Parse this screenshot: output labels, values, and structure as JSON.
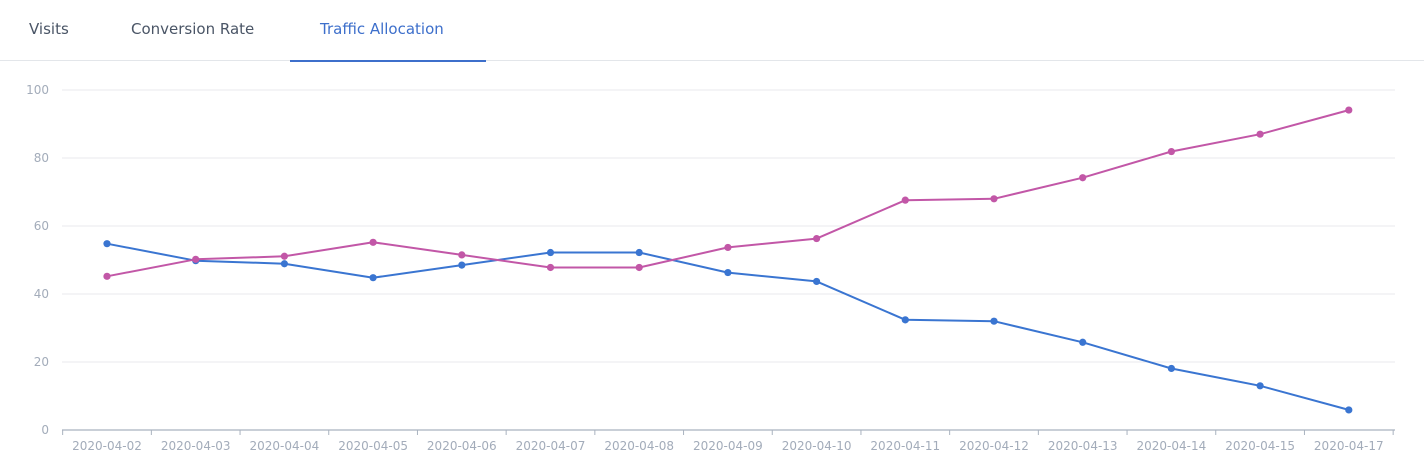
{
  "tabs": [
    {
      "label": "Visits",
      "active": false
    },
    {
      "label": "Conversion Rate",
      "active": false
    },
    {
      "label": "Traffic Allocation",
      "active": true
    }
  ],
  "colors": {
    "accent": "#3d6fcb",
    "series_blue": "#3a75d1",
    "series_magenta": "#c257a7",
    "grid": "#e8eaee",
    "axis": "#a9b2bf",
    "tick_text": "#a3acba"
  },
  "chart_data": {
    "type": "line",
    "title": "",
    "xlabel": "",
    "ylabel": "",
    "ylim": [
      0,
      100
    ],
    "yticks": [
      0,
      20,
      40,
      60,
      80,
      100
    ],
    "grid": true,
    "legend": "none",
    "x": [
      "2020-04-02",
      "2020-04-03",
      "2020-04-04",
      "2020-04-05",
      "2020-04-06",
      "2020-04-07",
      "2020-04-08",
      "2020-04-09",
      "2020-04-10",
      "2020-04-11",
      "2020-04-12",
      "2020-04-13",
      "2020-04-14",
      "2020-04-15",
      "2020-04-17"
    ],
    "series": [
      {
        "color": "#3a75d1",
        "values": [
          54.8,
          49.8,
          48.9,
          44.8,
          48.5,
          52.2,
          52.2,
          46.3,
          43.7,
          32.4,
          32.0,
          25.8,
          18.1,
          13.0,
          5.9
        ]
      },
      {
        "color": "#c257a7",
        "values": [
          45.2,
          50.2,
          51.1,
          55.2,
          51.5,
          47.8,
          47.8,
          53.7,
          56.3,
          67.6,
          68.0,
          74.2,
          81.9,
          87.0,
          94.1
        ]
      }
    ]
  }
}
